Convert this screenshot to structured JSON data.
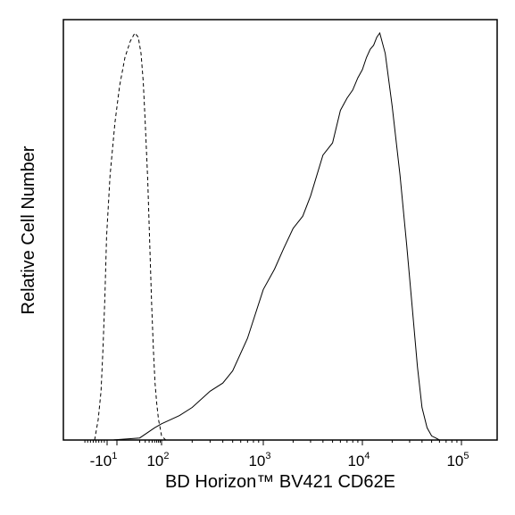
{
  "chart_data": {
    "type": "line",
    "xlabel": "BD Horizon™ BV421 CD62E",
    "ylabel": "Relative Cell Number",
    "x_scale": "biexponential",
    "xlim": [
      -100,
      100000
    ],
    "ylim": [
      0,
      100
    ],
    "grid": false,
    "x_ticks": [
      {
        "value": -10,
        "base": "-10",
        "exp": "1"
      },
      {
        "value": 100,
        "base": "10",
        "exp": "2"
      },
      {
        "value": 1000,
        "base": "10",
        "exp": "3"
      },
      {
        "value": 10000,
        "base": "10",
        "exp": "4"
      },
      {
        "value": 100000,
        "base": "10",
        "exp": "5"
      }
    ],
    "series": [
      {
        "style": "dashed",
        "color": "#000000",
        "x": [
          -55,
          -42,
          -32,
          -25,
          -18,
          -12,
          -7,
          -2,
          2,
          6,
          10,
          14,
          18,
          22,
          26,
          30,
          36,
          42,
          48,
          55,
          62,
          70,
          80,
          90,
          100,
          110
        ],
        "y": [
          0,
          5,
          12,
          22,
          35,
          50,
          65,
          78,
          87,
          94,
          98,
          100,
          99,
          95,
          88,
          78,
          64,
          48,
          34,
          22,
          14,
          9,
          5,
          3,
          1,
          0
        ]
      },
      {
        "style": "solid",
        "color": "#000000",
        "x": [
          -5,
          20,
          60,
          100,
          150,
          200,
          300,
          400,
          500,
          700,
          1000,
          1300,
          1600,
          2000,
          2500,
          3000,
          4000,
          5000,
          6000,
          7000,
          8000,
          9000,
          10000,
          11000,
          12000,
          13000,
          14000,
          15000,
          17000,
          20000,
          24000,
          28000,
          32000,
          36000,
          40000,
          45000,
          50000,
          55000,
          60000
        ],
        "y": [
          0,
          0.5,
          3,
          4,
          6,
          8,
          12,
          14,
          17,
          25,
          37,
          42,
          47,
          52,
          55,
          60,
          70,
          73,
          81,
          84,
          86,
          89,
          91,
          94,
          96,
          97,
          99,
          100,
          95,
          82,
          65,
          48,
          32,
          18,
          8,
          3,
          1,
          0.5,
          0
        ]
      }
    ]
  }
}
